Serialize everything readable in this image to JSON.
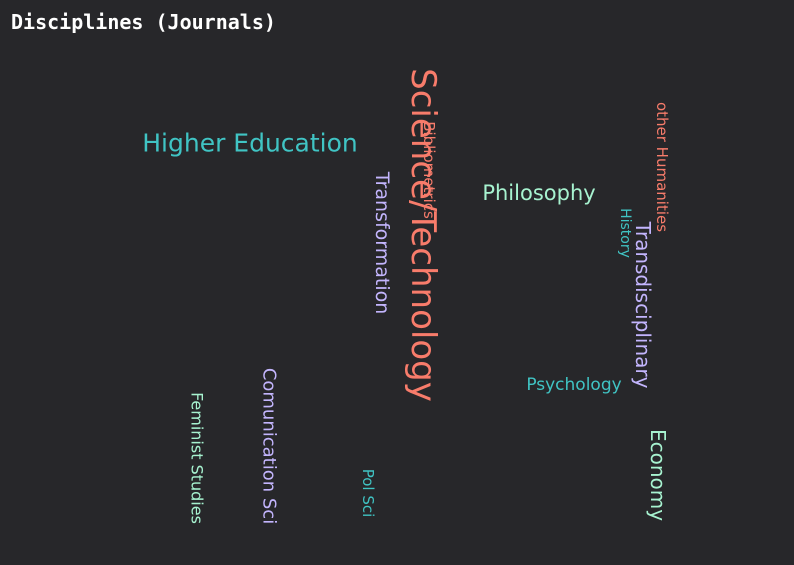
{
  "title": "Disciplines (Journals)",
  "chart_data": {
    "type": "wordcloud",
    "title": "Disciplines (Journals)",
    "words": [
      {
        "text": "Science/Technology",
        "weight": 10,
        "color": "#f87c6b",
        "orientation": "vertical"
      },
      {
        "text": "Higher Education",
        "weight": 6,
        "color": "#40c4c4",
        "orientation": "horizontal"
      },
      {
        "text": "Transdisciplinary",
        "weight": 5,
        "color": "#c3b5fd",
        "orientation": "vertical"
      },
      {
        "text": "Economy",
        "weight": 5,
        "color": "#a7f3d0",
        "orientation": "vertical"
      },
      {
        "text": "Philosophy",
        "weight": 5,
        "color": "#a7f3d0",
        "orientation": "horizontal"
      },
      {
        "text": "Transformation",
        "weight": 5,
        "color": "#c3b5fd",
        "orientation": "vertical"
      },
      {
        "text": "Comunication Sci",
        "weight": 4,
        "color": "#c3b5fd",
        "orientation": "vertical"
      },
      {
        "text": "Bibliometrics",
        "weight": 4,
        "color": "#f87c6b",
        "orientation": "vertical"
      },
      {
        "text": "Feminist Studies",
        "weight": 4,
        "color": "#a7f3d0",
        "orientation": "vertical"
      },
      {
        "text": "other Humanities",
        "weight": 4,
        "color": "#f87c6b",
        "orientation": "vertical"
      },
      {
        "text": "Psychology",
        "weight": 4,
        "color": "#40c4c4",
        "orientation": "horizontal"
      },
      {
        "text": "Pol Sci",
        "weight": 3,
        "color": "#40c4c4",
        "orientation": "vertical"
      },
      {
        "text": "History",
        "weight": 3,
        "color": "#40c4c4",
        "orientation": "vertical"
      }
    ]
  }
}
